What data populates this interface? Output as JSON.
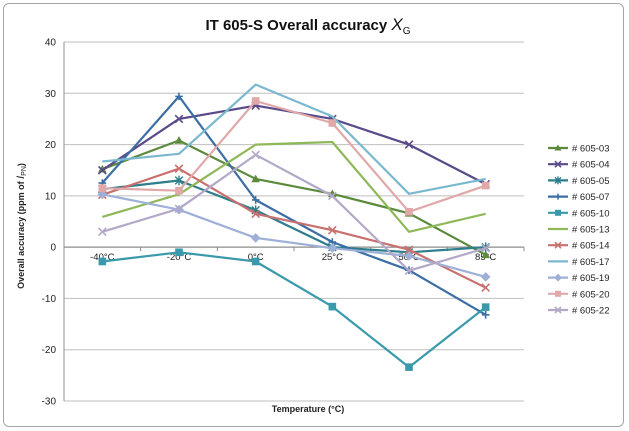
{
  "chart_data": {
    "type": "line",
    "title": "IT 605-S Overall accuracy ",
    "title_symbol": "X",
    "title_subscript": "G",
    "xlabel": "Temperature (°C)",
    "ylabel_prefix": "Overall accuracy  (ppm of ",
    "ylabel_symbol": "I",
    "ylabel_subscript": "PN",
    "ylabel_suffix": ")",
    "categories": [
      "-40°C",
      "-20°C",
      "0°C",
      "25°C",
      "50°C",
      "85°C"
    ],
    "ylim": [
      -30,
      40
    ],
    "yticks": [
      40,
      30,
      20,
      10,
      0,
      -10,
      -20,
      -30
    ],
    "grid": true,
    "legend_position": "right",
    "series": [
      {
        "name": "# 605-03",
        "color": "#5b8a3c",
        "marker": "triangle",
        "values": [
          15.2,
          20.8,
          13.3,
          10.4,
          6.6,
          -1.5
        ]
      },
      {
        "name": "# 605-04",
        "color": "#5a4a8a",
        "marker": "x",
        "values": [
          15.0,
          25.0,
          27.6,
          25.0,
          20.0,
          12.3
        ]
      },
      {
        "name": "# 605-05",
        "color": "#2e7d8c",
        "marker": "asterisk",
        "values": [
          11.3,
          13.0,
          7.2,
          0.0,
          -1.0,
          0.0
        ]
      },
      {
        "name": "# 605-07",
        "color": "#3b6ea5",
        "marker": "plus",
        "values": [
          12.5,
          29.4,
          9.2,
          1.0,
          -4.5,
          -13.2
        ]
      },
      {
        "name": "# 605-10",
        "color": "#3a9aab",
        "marker": "square",
        "values": [
          -2.8,
          -1.0,
          -2.8,
          -11.6,
          -23.4,
          -11.7
        ]
      },
      {
        "name": "# 605-13",
        "color": "#8fb85a",
        "marker": "none",
        "values": [
          5.9,
          10.3,
          20.0,
          20.5,
          3.0,
          6.5
        ]
      },
      {
        "name": "# 605-14",
        "color": "#c8706e",
        "marker": "x",
        "values": [
          10.2,
          15.3,
          6.5,
          3.3,
          -0.5,
          -7.9
        ]
      },
      {
        "name": "# 605-17",
        "color": "#7ab8d0",
        "marker": "none",
        "values": [
          16.7,
          18.2,
          31.7,
          25.5,
          10.4,
          13.3
        ]
      },
      {
        "name": "# 605-19",
        "color": "#9eb0d8",
        "marker": "diamond",
        "values": [
          10.3,
          7.3,
          1.8,
          -0.2,
          -1.7,
          -5.8
        ]
      },
      {
        "name": "# 605-20",
        "color": "#e0a8a8",
        "marker": "square",
        "values": [
          11.5,
          11.0,
          28.5,
          24.2,
          6.9,
          12.0
        ]
      },
      {
        "name": "# 605-22",
        "color": "#b3a8c8",
        "marker": "x",
        "values": [
          3.0,
          7.5,
          18.0,
          10.0,
          -4.6,
          -0.2
        ]
      }
    ]
  }
}
